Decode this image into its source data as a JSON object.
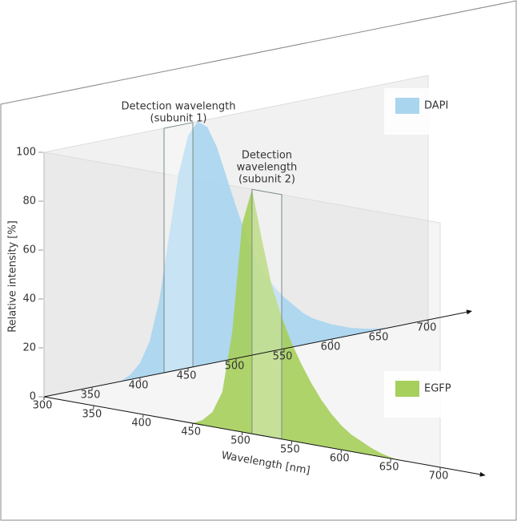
{
  "chart_data": {
    "type": "area",
    "x_label": "Wavelength [nm]",
    "y_label": "Relative intensity [%]",
    "x": [
      380,
      390,
      400,
      410,
      420,
      430,
      440,
      450,
      460,
      470,
      480,
      490,
      500,
      510,
      520,
      530,
      540,
      550,
      560,
      570,
      580,
      590,
      600,
      610,
      620,
      630,
      640,
      650,
      660
    ],
    "series": [
      {
        "name": "DAPI",
        "color": "#a9d5ef",
        "plane": "back",
        "values": [
          0,
          2,
          6,
          14,
          30,
          55,
          80,
          95,
          100,
          97,
          88,
          75,
          62,
          50,
          40,
          32,
          26,
          21,
          17,
          13,
          10,
          8,
          6,
          4.5,
          3,
          2,
          1,
          0.5,
          0
        ]
      },
      {
        "name": "EGFP",
        "color": "#a6cf5c",
        "plane": "front",
        "values": [
          0,
          0,
          0,
          0,
          0,
          0,
          0,
          0,
          2,
          6,
          15,
          40,
          85,
          100,
          80,
          62,
          50,
          40,
          32,
          25,
          19,
          14,
          10,
          7,
          5,
          3,
          1.5,
          0.5,
          0
        ]
      }
    ],
    "detection_bands": [
      {
        "label": [
          "Detection wavelength",
          "(subunit 1)"
        ],
        "range": [
          425,
          455
        ],
        "plane": "back"
      },
      {
        "label": [
          "Detection",
          "wavelength",
          "(subunit 2)"
        ],
        "range": [
          510,
          540
        ],
        "plane": "front"
      }
    ],
    "xlim": [
      300,
      700
    ],
    "xticks": [
      300,
      350,
      400,
      450,
      500,
      550,
      600,
      650,
      700
    ],
    "ylim": [
      0,
      100
    ],
    "yticks": [
      0,
      20,
      40,
      60,
      80,
      100
    ]
  }
}
